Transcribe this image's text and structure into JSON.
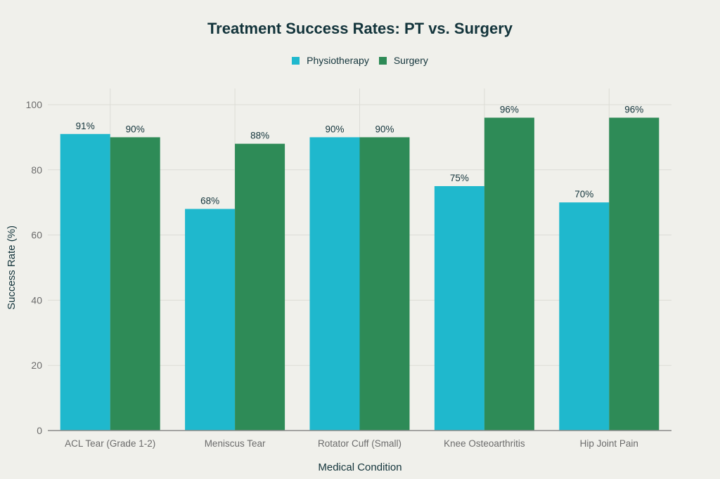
{
  "chart_data": {
    "type": "bar",
    "title": "Treatment Success Rates: PT vs. Surgery",
    "xlabel": "Medical Condition",
    "ylabel": "Success Rate (%)",
    "ylim": [
      0,
      100
    ],
    "yticks": [
      0,
      20,
      40,
      60,
      80,
      100
    ],
    "grid": true,
    "legend_position": "top-center",
    "categories": [
      "ACL Tear (Grade 1-2)",
      "Meniscus Tear",
      "Rotator Cuff (Small)",
      "Knee Osteoarthritis",
      "Hip Joint Pain"
    ],
    "series": [
      {
        "name": "Physiotherapy",
        "color": "#1fb8cd",
        "values": [
          91,
          68,
          90,
          75,
          70
        ],
        "labels": [
          "91%",
          "68%",
          "90%",
          "75%",
          "70%"
        ]
      },
      {
        "name": "Surgery",
        "color": "#2e8b57",
        "values": [
          90,
          88,
          90,
          96,
          96
        ],
        "labels": [
          "90%",
          "88%",
          "90%",
          "96%",
          "96%"
        ]
      }
    ]
  }
}
